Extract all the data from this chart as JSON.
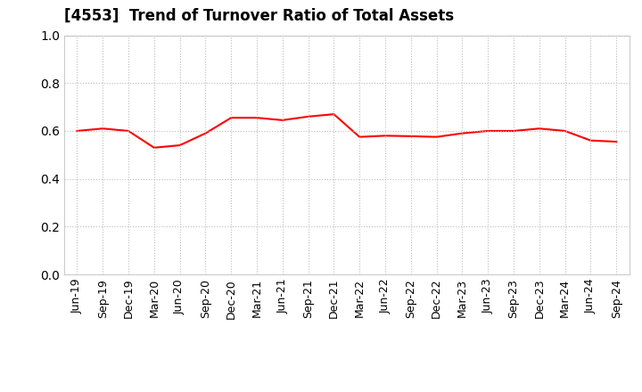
{
  "title": "[4553]  Trend of Turnover Ratio of Total Assets",
  "x_labels": [
    "Jun-19",
    "Sep-19",
    "Dec-19",
    "Mar-20",
    "Jun-20",
    "Sep-20",
    "Dec-20",
    "Mar-21",
    "Jun-21",
    "Sep-21",
    "Dec-21",
    "Mar-22",
    "Jun-22",
    "Sep-22",
    "Dec-22",
    "Mar-23",
    "Jun-23",
    "Sep-23",
    "Dec-23",
    "Mar-24",
    "Jun-24",
    "Sep-24"
  ],
  "y_values": [
    0.6,
    0.61,
    0.6,
    0.53,
    0.54,
    0.59,
    0.655,
    0.655,
    0.645,
    0.66,
    0.67,
    0.575,
    0.58,
    0.578,
    0.575,
    0.59,
    0.6,
    0.6,
    0.61,
    0.6,
    0.56,
    0.555
  ],
  "line_color": "#FF0000",
  "line_width": 1.5,
  "ylim": [
    0.0,
    1.0
  ],
  "yticks": [
    0.0,
    0.2,
    0.4,
    0.6,
    0.8,
    1.0
  ],
  "grid_color": "#bbbbbb",
  "background_color": "#ffffff",
  "title_fontsize": 12,
  "tick_fontsize": 9
}
